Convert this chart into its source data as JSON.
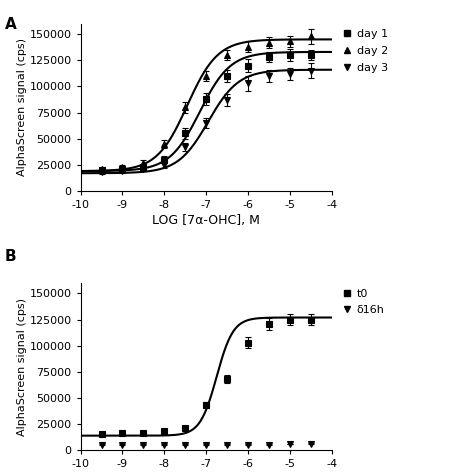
{
  "panel_A": {
    "xlabel": "LOG [7α-OHC], M",
    "ylabel": "AlphaScreen signal (cps)",
    "xlim": [
      -10,
      -4
    ],
    "ylim": [
      0,
      160000
    ],
    "yticks": [
      0,
      25000,
      50000,
      75000,
      100000,
      125000,
      150000
    ],
    "xticks": [
      -10,
      -9,
      -8,
      -7,
      -6,
      -5,
      -4
    ],
    "series": [
      {
        "label": "day 1",
        "marker": "s",
        "x": [
          -9.5,
          -9.0,
          -8.5,
          -8.0,
          -7.5,
          -7.0,
          -6.5,
          -6.0,
          -5.5,
          -5.0,
          -4.5
        ],
        "y": [
          20000,
          21000,
          23000,
          30000,
          55000,
          88000,
          110000,
          120000,
          128000,
          130000,
          130000
        ],
        "yerr": [
          2000,
          2000,
          2000,
          3000,
          5000,
          6000,
          6000,
          6000,
          5000,
          6000,
          5000
        ],
        "ec50_log": -7.15,
        "top": 133000,
        "bottom": 19000,
        "hill": 1.2
      },
      {
        "label": "day 2",
        "marker": "^",
        "x": [
          -9.5,
          -9.0,
          -8.5,
          -8.0,
          -7.5,
          -7.0,
          -6.5,
          -6.0,
          -5.5,
          -5.0,
          -4.5
        ],
        "y": [
          21000,
          23000,
          27000,
          45000,
          80000,
          110000,
          130000,
          138000,
          142000,
          143000,
          148000
        ],
        "yerr": [
          2000,
          2000,
          3000,
          4000,
          5000,
          5000,
          5000,
          5000,
          5000,
          5000,
          7000
        ],
        "ec50_log": -7.45,
        "top": 145000,
        "bottom": 19000,
        "hill": 1.2
      },
      {
        "label": "day 3",
        "marker": "v",
        "x": [
          -9.5,
          -9.0,
          -8.5,
          -8.0,
          -7.5,
          -7.0,
          -6.5,
          -6.0,
          -5.5,
          -5.0,
          -4.5
        ],
        "y": [
          18000,
          19000,
          21000,
          25000,
          42000,
          65000,
          87000,
          103000,
          110000,
          112000,
          115000
        ],
        "yerr": [
          2000,
          2000,
          2000,
          3000,
          4000,
          5000,
          6000,
          7000,
          6000,
          6000,
          7000
        ],
        "ec50_log": -6.95,
        "top": 116000,
        "bottom": 17000,
        "hill": 1.2
      }
    ]
  },
  "panel_B": {
    "xlabel": "",
    "ylabel": "AlphaScreen signal (cps)",
    "xlim": [
      -10,
      -4
    ],
    "ylim": [
      0,
      160000
    ],
    "yticks": [
      0,
      25000,
      50000,
      75000,
      100000,
      125000,
      150000
    ],
    "xticks": [
      -10,
      -9,
      -8,
      -7,
      -6,
      -5,
      -4
    ],
    "series": [
      {
        "label": "t0",
        "marker": "s",
        "x": [
          -9.5,
          -9.0,
          -8.5,
          -8.0,
          -7.5,
          -7.0,
          -6.5,
          -6.0,
          -5.5,
          -5.0,
          -4.5
        ],
        "y": [
          16000,
          16500,
          17000,
          18000,
          21000,
          43000,
          68000,
          103000,
          121000,
          125000,
          125000
        ],
        "yerr": [
          1500,
          1500,
          1500,
          1500,
          2000,
          3000,
          4000,
          5000,
          6000,
          5000,
          5000
        ],
        "ec50_log": -6.75,
        "top": 127000,
        "bottom": 14000,
        "hill": 2.2
      },
      {
        "label": "δ16h",
        "marker": "v",
        "x": [
          -9.5,
          -9.0,
          -8.5,
          -8.0,
          -7.5,
          -7.0,
          -6.5,
          -6.0,
          -5.5,
          -5.0,
          -4.5
        ],
        "y": [
          5500,
          5500,
          5500,
          5500,
          5500,
          5500,
          5500,
          5500,
          5500,
          6000,
          6500
        ],
        "yerr": [
          400,
          400,
          400,
          400,
          400,
          400,
          400,
          400,
          400,
          400,
          500
        ]
      }
    ]
  },
  "marker_size": 5,
  "line_color": "black",
  "marker_color": "black",
  "font_size": 8,
  "label_fontsize": 9
}
